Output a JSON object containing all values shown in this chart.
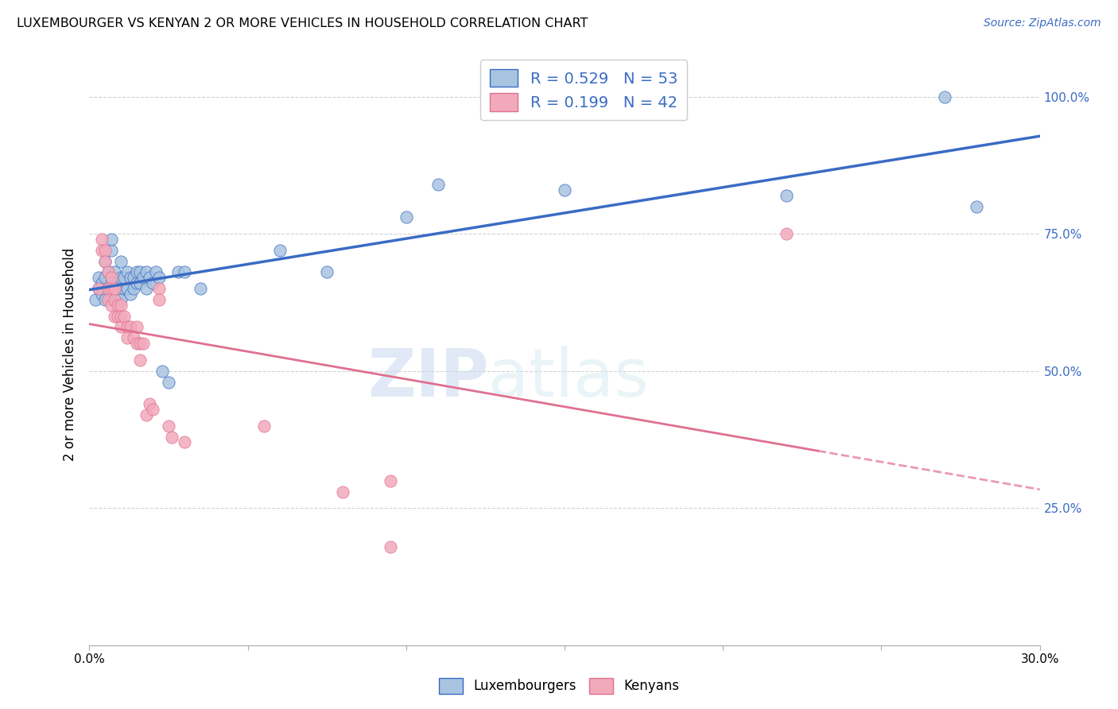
{
  "title": "LUXEMBOURGER VS KENYAN 2 OR MORE VEHICLES IN HOUSEHOLD CORRELATION CHART",
  "source": "Source: ZipAtlas.com",
  "ylabel": "2 or more Vehicles in Household",
  "x_min": 0.0,
  "x_max": 0.3,
  "y_min": 0.0,
  "y_max": 1.06,
  "blue_R": 0.529,
  "blue_N": 53,
  "pink_R": 0.199,
  "pink_N": 42,
  "blue_color": "#a8c4e0",
  "pink_color": "#f2aabb",
  "blue_line_color": "#3a6bc4",
  "pink_line_color": "#e07090",
  "watermark_zip": "ZIP",
  "watermark_atlas": "atlas",
  "blue_scatter": [
    [
      0.002,
      0.63
    ],
    [
      0.003,
      0.65
    ],
    [
      0.003,
      0.67
    ],
    [
      0.004,
      0.64
    ],
    [
      0.004,
      0.66
    ],
    [
      0.005,
      0.63
    ],
    [
      0.005,
      0.67
    ],
    [
      0.005,
      0.7
    ],
    [
      0.006,
      0.65
    ],
    [
      0.006,
      0.68
    ],
    [
      0.007,
      0.63
    ],
    [
      0.007,
      0.66
    ],
    [
      0.007,
      0.72
    ],
    [
      0.007,
      0.74
    ],
    [
      0.008,
      0.65
    ],
    [
      0.008,
      0.68
    ],
    [
      0.009,
      0.64
    ],
    [
      0.009,
      0.66
    ],
    [
      0.01,
      0.63
    ],
    [
      0.01,
      0.67
    ],
    [
      0.01,
      0.7
    ],
    [
      0.011,
      0.65
    ],
    [
      0.011,
      0.67
    ],
    [
      0.012,
      0.65
    ],
    [
      0.012,
      0.68
    ],
    [
      0.013,
      0.64
    ],
    [
      0.013,
      0.67
    ],
    [
      0.014,
      0.65
    ],
    [
      0.014,
      0.67
    ],
    [
      0.015,
      0.66
    ],
    [
      0.015,
      0.68
    ],
    [
      0.016,
      0.66
    ],
    [
      0.016,
      0.68
    ],
    [
      0.017,
      0.67
    ],
    [
      0.018,
      0.65
    ],
    [
      0.018,
      0.68
    ],
    [
      0.019,
      0.67
    ],
    [
      0.02,
      0.66
    ],
    [
      0.021,
      0.68
    ],
    [
      0.022,
      0.67
    ],
    [
      0.023,
      0.5
    ],
    [
      0.025,
      0.48
    ],
    [
      0.028,
      0.68
    ],
    [
      0.03,
      0.68
    ],
    [
      0.035,
      0.65
    ],
    [
      0.06,
      0.72
    ],
    [
      0.075,
      0.68
    ],
    [
      0.1,
      0.78
    ],
    [
      0.11,
      0.84
    ],
    [
      0.15,
      0.83
    ],
    [
      0.22,
      0.82
    ],
    [
      0.27,
      1.0
    ],
    [
      0.28,
      0.8
    ]
  ],
  "pink_scatter": [
    [
      0.003,
      0.65
    ],
    [
      0.004,
      0.74
    ],
    [
      0.004,
      0.72
    ],
    [
      0.005,
      0.72
    ],
    [
      0.005,
      0.7
    ],
    [
      0.006,
      0.65
    ],
    [
      0.006,
      0.68
    ],
    [
      0.006,
      0.63
    ],
    [
      0.007,
      0.65
    ],
    [
      0.007,
      0.62
    ],
    [
      0.007,
      0.67
    ],
    [
      0.008,
      0.63
    ],
    [
      0.008,
      0.65
    ],
    [
      0.008,
      0.6
    ],
    [
      0.009,
      0.62
    ],
    [
      0.009,
      0.6
    ],
    [
      0.01,
      0.62
    ],
    [
      0.01,
      0.6
    ],
    [
      0.01,
      0.58
    ],
    [
      0.011,
      0.6
    ],
    [
      0.012,
      0.58
    ],
    [
      0.012,
      0.56
    ],
    [
      0.013,
      0.58
    ],
    [
      0.014,
      0.56
    ],
    [
      0.015,
      0.55
    ],
    [
      0.015,
      0.58
    ],
    [
      0.016,
      0.55
    ],
    [
      0.016,
      0.52
    ],
    [
      0.017,
      0.55
    ],
    [
      0.018,
      0.42
    ],
    [
      0.019,
      0.44
    ],
    [
      0.02,
      0.43
    ],
    [
      0.022,
      0.65
    ],
    [
      0.022,
      0.63
    ],
    [
      0.025,
      0.4
    ],
    [
      0.026,
      0.38
    ],
    [
      0.03,
      0.37
    ],
    [
      0.055,
      0.4
    ],
    [
      0.08,
      0.28
    ],
    [
      0.095,
      0.3
    ],
    [
      0.22,
      0.75
    ],
    [
      0.095,
      0.18
    ]
  ]
}
